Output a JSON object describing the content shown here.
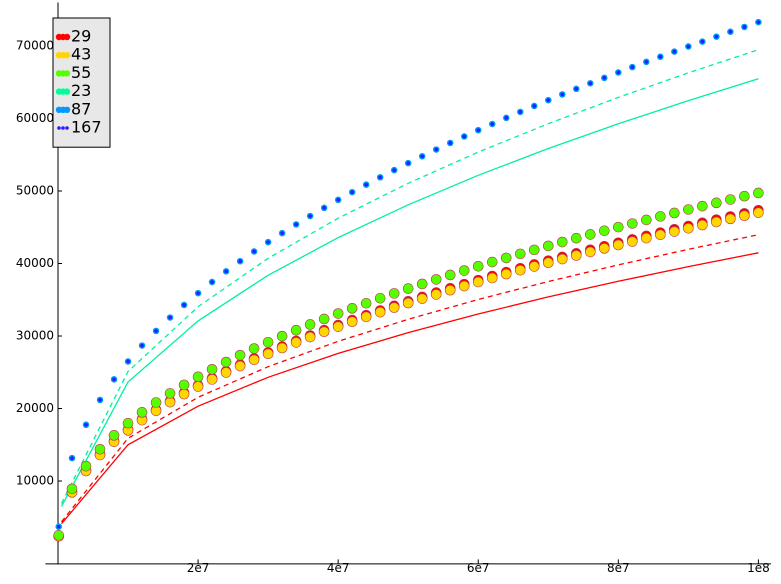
{
  "chart_data": {
    "type": "scatter",
    "x": [
      100000,
      2000000,
      4000000,
      6000000,
      8000000,
      10000000,
      12000000,
      14000000,
      16000000,
      18000000,
      20000000,
      22000000,
      24000000,
      26000000,
      28000000,
      30000000,
      32000000,
      34000000,
      36000000,
      38000000,
      40000000,
      42000000,
      44000000,
      46000000,
      48000000,
      50000000,
      52000000,
      54000000,
      56000000,
      58000000,
      60000000,
      62000000,
      64000000,
      66000000,
      68000000,
      70000000,
      72000000,
      74000000,
      76000000,
      78000000,
      80000000,
      82000000,
      84000000,
      86000000,
      88000000,
      90000000,
      92000000,
      94000000,
      96000000,
      98000000,
      100000000
    ],
    "series": [
      {
        "x": [
          500000,
          10000000,
          20000000,
          30000000,
          40000000,
          50000000,
          60000000,
          70000000,
          80000000,
          90000000,
          100000000
        ],
        "style": "solid",
        "color": "#ff0000",
        "values": [
          4120,
          14990,
          20320,
          24310,
          27600,
          30470,
          33040,
          35390,
          37550,
          39570,
          41480
        ]
      },
      {
        "x": [
          500000,
          10000000,
          20000000,
          30000000,
          40000000,
          50000000,
          60000000,
          70000000,
          80000000,
          90000000,
          100000000
        ],
        "style": "dashed",
        "color": "#ff0000",
        "values": [
          4370,
          15890,
          21550,
          25770,
          29270,
          32310,
          35030,
          37520,
          39810,
          41960,
          43970
        ]
      },
      {
        "x": [
          500000,
          10000000,
          20000000,
          30000000,
          40000000,
          50000000,
          60000000,
          70000000,
          80000000,
          90000000,
          100000000
        ],
        "style": "solid",
        "color": "#00f0a0",
        "values": [
          6500,
          23660,
          32080,
          38370,
          43570,
          48100,
          52160,
          55860,
          59270,
          62470,
          65470
        ]
      },
      {
        "x": [
          500000,
          10000000,
          20000000,
          30000000,
          40000000,
          50000000,
          60000000,
          70000000,
          80000000,
          90000000,
          100000000
        ],
        "style": "dashed",
        "color": "#00f0a0",
        "values": [
          6900,
          25110,
          34050,
          40720,
          46250,
          51060,
          55360,
          59280,
          62910,
          66300,
          69490
        ]
      },
      {
        "name": "29",
        "style": "dot-large",
        "color": "#ff0000",
        "values": [
          2400,
          8500,
          11470,
          13690,
          15520,
          17110,
          18530,
          19830,
          21030,
          22150,
          23200,
          24190,
          25140,
          26040,
          26910,
          27740,
          28540,
          29320,
          30070,
          30800,
          31510,
          32200,
          32870,
          33520,
          34160,
          34780,
          35390,
          35990,
          36580,
          37150,
          37710,
          38270,
          38810,
          39340,
          39870,
          40390,
          40900,
          41400,
          41890,
          42380,
          42860,
          43330,
          43800,
          44260,
          44720,
          45170,
          45610,
          46050,
          46480,
          46910,
          47340
        ]
      },
      {
        "name": "43",
        "style": "dot-large",
        "color": "#ffd700",
        "values": [
          2380,
          8440,
          11390,
          13590,
          15410,
          16990,
          18400,
          19690,
          20880,
          21990,
          23040,
          24020,
          24970,
          25860,
          26720,
          27550,
          28350,
          29120,
          29860,
          30590,
          31290,
          31970,
          32640,
          33290,
          33920,
          34540,
          35150,
          35740,
          36320,
          36890,
          37450,
          38000,
          38540,
          39070,
          39600,
          40110,
          40620,
          41110,
          41600,
          42090,
          42560,
          43030,
          43500,
          43960,
          44410,
          44860,
          45300,
          45730,
          46160,
          46590,
          47010
        ]
      },
      {
        "name": "55",
        "style": "dot-large",
        "color": "#55ff00",
        "values": [
          2520,
          8930,
          12050,
          14380,
          16300,
          17970,
          19470,
          20830,
          22090,
          23260,
          24370,
          25410,
          26410,
          27360,
          28270,
          29140,
          29980,
          30800,
          31590,
          32350,
          33100,
          33820,
          34520,
          35210,
          35880,
          36540,
          37180,
          37810,
          38420,
          39030,
          39620,
          40200,
          40770,
          41330,
          41880,
          42430,
          42960,
          43490,
          44010,
          44520,
          45020,
          45520,
          46010,
          46500,
          46970,
          47450,
          47910,
          48370,
          48830,
          49280,
          49730
        ]
      },
      {
        "name": "23",
        "style": "dot-small",
        "color": "#00ff99",
        "values": [
          3710,
          13160,
          17760,
          21190,
          24020,
          26490,
          28690,
          30700,
          32550,
          34280,
          35910,
          37450,
          38920,
          40320,
          41660,
          42950,
          44190,
          45390,
          46550,
          47680,
          48780,
          49840,
          50880,
          51890,
          52880,
          53850,
          54790,
          55720,
          56630,
          57520,
          58390,
          59240,
          60090,
          60910,
          61730,
          62530,
          63320,
          64090,
          64860,
          65610,
          66350,
          67090,
          67810,
          68520,
          69230,
          69930,
          70610,
          71290,
          71970,
          72630,
          73290
        ]
      },
      {
        "name": "87",
        "style": "dot-small",
        "color": "#0099ff",
        "values": [
          3710,
          13160,
          17760,
          21190,
          24020,
          26490,
          28690,
          30700,
          32550,
          34280,
          35910,
          37450,
          38920,
          40320,
          41660,
          42950,
          44190,
          45390,
          46550,
          47680,
          48780,
          49840,
          50880,
          51890,
          52880,
          53850,
          54790,
          55720,
          56630,
          57520,
          58390,
          59240,
          60090,
          60910,
          61730,
          62530,
          63320,
          64090,
          64860,
          65610,
          66350,
          67090,
          67810,
          68520,
          69230,
          69930,
          70610,
          71290,
          71970,
          72630,
          73290
        ]
      },
      {
        "name": "167",
        "style": "dot-tiny",
        "color": "#2a1aff",
        "values": [
          3710,
          13160,
          17760,
          21190,
          24020,
          26490,
          28690,
          30700,
          32550,
          34280,
          35910,
          37450,
          38920,
          40320,
          41660,
          42950,
          44190,
          45390,
          46550,
          47680,
          48780,
          49840,
          50880,
          51890,
          52880,
          53850,
          54790,
          55720,
          56630,
          57520,
          58390,
          59240,
          60090,
          60910,
          61730,
          62530,
          63320,
          64090,
          64860,
          65610,
          66350,
          67090,
          67810,
          68520,
          69230,
          69930,
          70610,
          71290,
          71970,
          72630,
          73290
        ]
      }
    ],
    "xlim": [
      -1800000,
      101800000
    ],
    "ylim": [
      -1500,
      76000
    ],
    "xticks": [
      {
        "value": 20000000,
        "label": "2e7"
      },
      {
        "value": 40000000,
        "label": "4e7"
      },
      {
        "value": 60000000,
        "label": "6e7"
      },
      {
        "value": 80000000,
        "label": "8e7"
      },
      {
        "value": 100000000,
        "label": "1e8"
      }
    ],
    "yticks": [
      10000,
      20000,
      30000,
      40000,
      50000,
      60000,
      70000
    ],
    "legend": "upper left"
  }
}
